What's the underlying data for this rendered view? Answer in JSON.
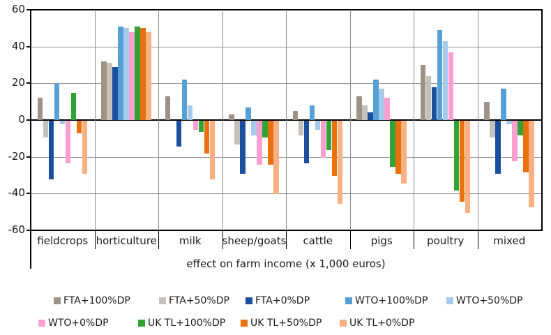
{
  "chart_data": {
    "type": "bar",
    "title": "",
    "xlabel": "effect on farm income (x 1,000 euros)",
    "ylabel": "",
    "ylim": [
      -60,
      60
    ],
    "ytick_labels": [
      "60",
      "40",
      "20",
      "0",
      "-20",
      "-40",
      "-60"
    ],
    "ytick_values": [
      60,
      40,
      20,
      0,
      -20,
      -40,
      -60
    ],
    "grid": true,
    "legend_position": "bottom",
    "categories": [
      "fieldcrops",
      "horticulture",
      "milk",
      "sheep/goats",
      "cattle",
      "pigs",
      "poultry",
      "mixed"
    ],
    "series": [
      {
        "name": "FTA+100%DP",
        "color": "#9D9287",
        "values": [
          12,
          32,
          13,
          3,
          5,
          13,
          30,
          10
        ]
      },
      {
        "name": "FTA+50%DP",
        "color": "#C5C1BB",
        "values": [
          -9,
          31,
          0,
          -13,
          -8,
          8,
          24,
          -9
        ]
      },
      {
        "name": "FTA+0%DP",
        "color": "#1B4F9F",
        "values": [
          -32,
          29,
          -14,
          -29,
          -23,
          4,
          18,
          -29
        ]
      },
      {
        "name": "WTO+100%DP",
        "color": "#57A0D7",
        "values": [
          20,
          51,
          22,
          7,
          8,
          22,
          49,
          17
        ]
      },
      {
        "name": "WTO+50%DP",
        "color": "#A6CBEA",
        "values": [
          -2,
          50,
          8,
          -8,
          -5,
          17,
          43,
          -2
        ]
      },
      {
        "name": "WTO+0%DP",
        "color": "#FB9FD1",
        "values": [
          -23,
          48,
          -5,
          -24,
          -20,
          12,
          37,
          -22
        ]
      },
      {
        "name": "UK TL+100%DP",
        "color": "#30A336",
        "values": [
          15,
          51,
          -6,
          -9,
          -16,
          -25,
          -38,
          -8
        ]
      },
      {
        "name": "UK TL+50%DP",
        "color": "#E8700D",
        "values": [
          -7,
          50,
          -18,
          -24,
          -30,
          -29,
          -44,
          -28
        ]
      },
      {
        "name": "UK TL+0%DP",
        "color": "#F9B083",
        "values": [
          -29,
          48,
          -32,
          -40,
          -45,
          -34,
          -50,
          -47
        ]
      }
    ]
  },
  "colors": {
    "gridline": "#8c8c8c",
    "axis": "#000000",
    "background": "#ffffff"
  }
}
